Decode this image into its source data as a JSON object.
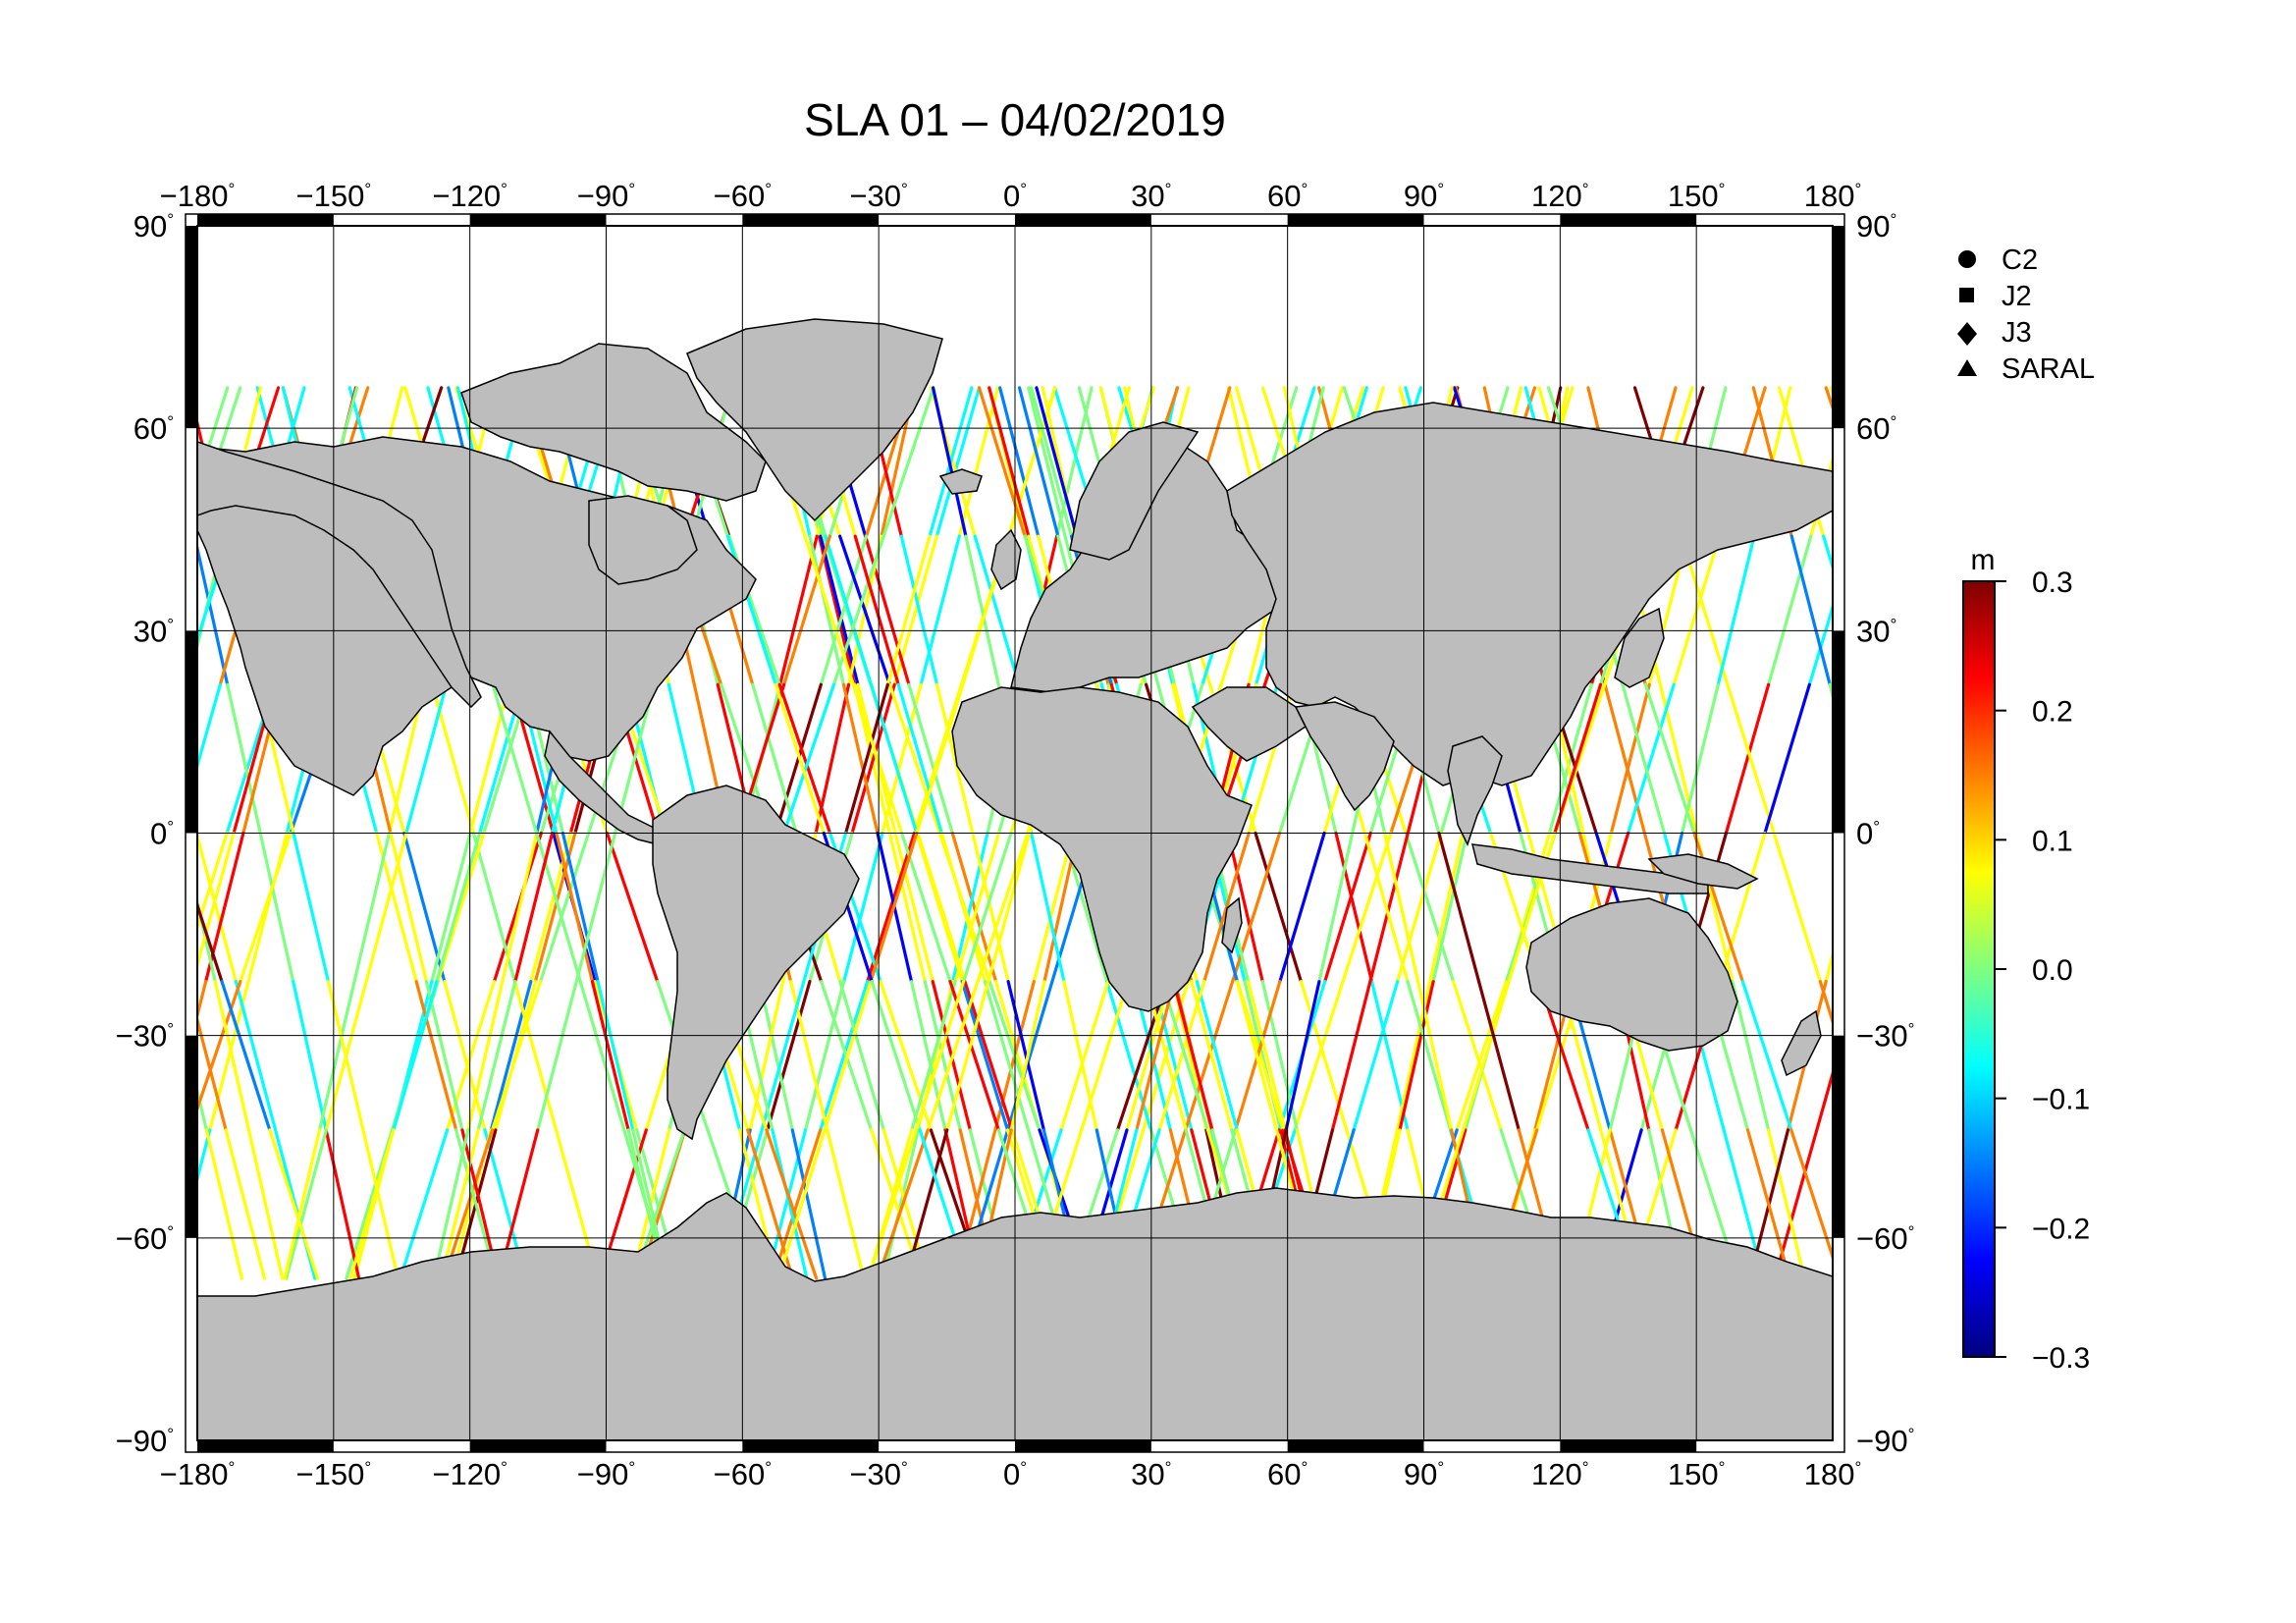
{
  "title": "SLA 01 – 04/02/2019",
  "map": {
    "projection": "plate-carree",
    "lon_range": [
      -180,
      180
    ],
    "lat_range": [
      -90,
      90
    ],
    "lon_ticks": [
      "−180",
      "−150",
      "−120",
      "−90",
      "−60",
      "−30",
      "0",
      "30",
      "60",
      "90",
      "120",
      "150",
      "180"
    ],
    "lat_ticks": [
      "90",
      "60",
      "30",
      "0",
      "−30",
      "−60",
      "−90"
    ],
    "lon_tick_values": [
      -180,
      -150,
      -120,
      -90,
      -60,
      -30,
      0,
      30,
      60,
      90,
      120,
      150,
      180
    ],
    "lat_tick_values": [
      90,
      60,
      30,
      0,
      -30,
      -60,
      -90
    ],
    "degree_symbol": "°",
    "grid": true,
    "land_color": "#bdbdbd",
    "ocean_color": "#ffffff",
    "track_coverage_lat": [
      -66,
      66
    ]
  },
  "legend": {
    "placement": "top-right",
    "items": [
      {
        "label": "C2",
        "marker": "circle"
      },
      {
        "label": "J2",
        "marker": "square"
      },
      {
        "label": "J3",
        "marker": "diamond"
      },
      {
        "label": "SARAL",
        "marker": "triangle"
      }
    ]
  },
  "colorbar": {
    "unit": "m",
    "min": -0.3,
    "max": 0.3,
    "ticks": [
      "0.3",
      "0.2",
      "0.1",
      "0.0",
      "−0.1",
      "−0.2",
      "−0.3"
    ],
    "tick_values": [
      0.3,
      0.2,
      0.1,
      0.0,
      -0.1,
      -0.2,
      -0.3
    ],
    "colormap": "jet",
    "colors": [
      "#00007f",
      "#0000ff",
      "#007fff",
      "#00ffff",
      "#7fff7f",
      "#ffff00",
      "#ff7f00",
      "#ff0000",
      "#7f0000"
    ]
  }
}
